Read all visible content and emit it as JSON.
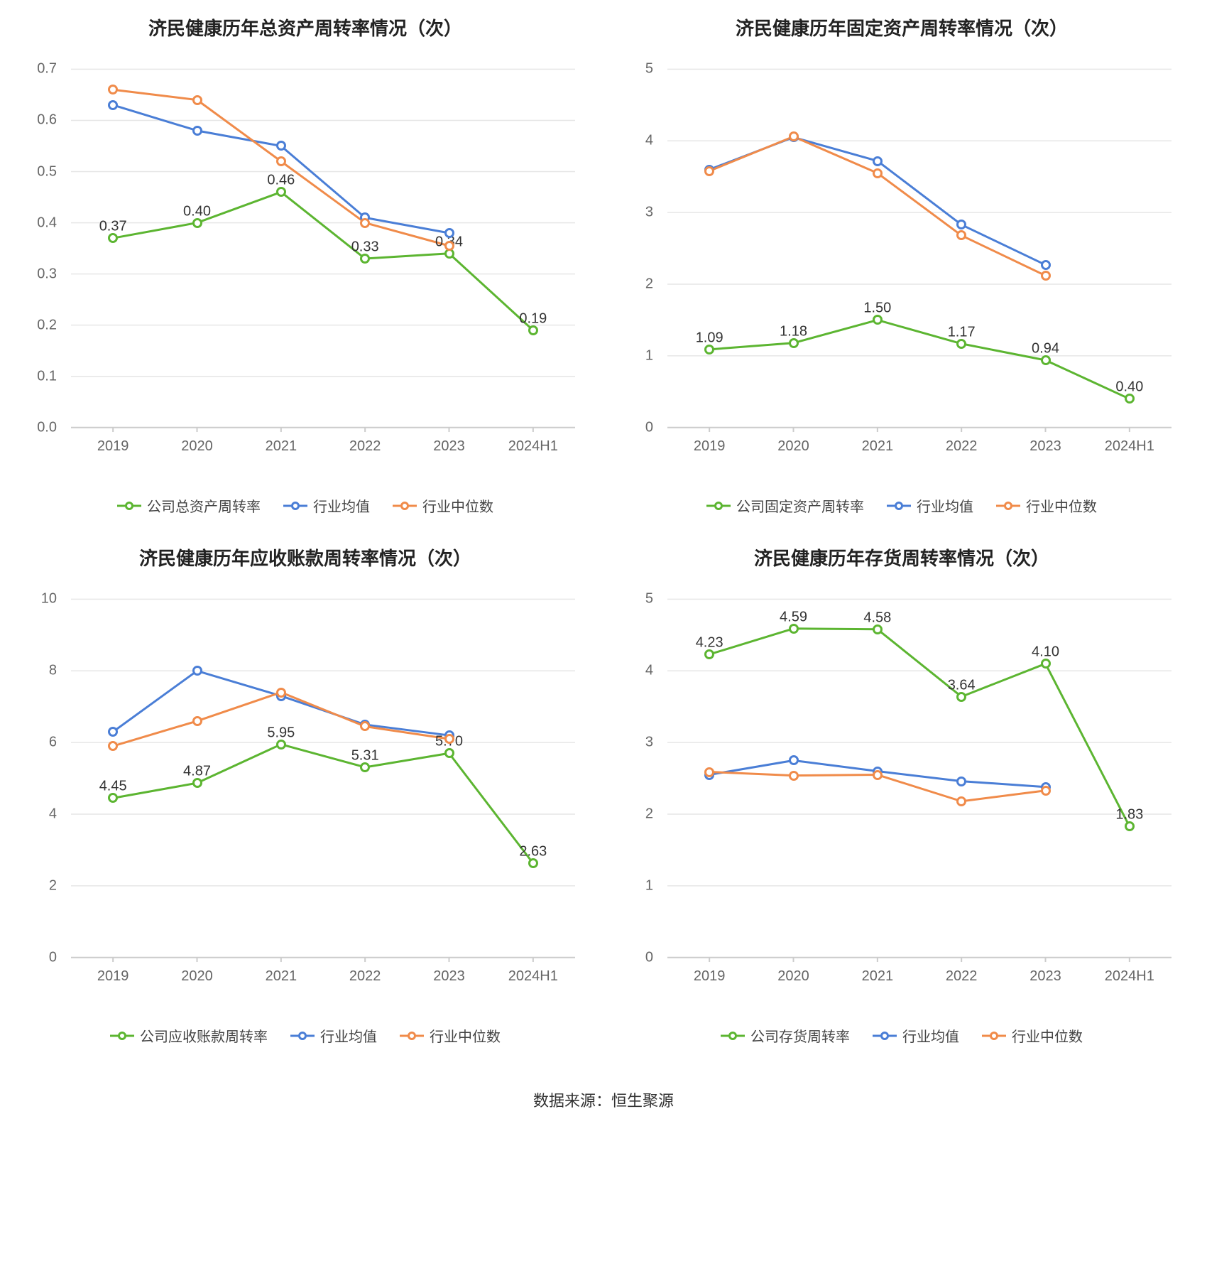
{
  "source_text": "数据来源：恒生聚源",
  "colors": {
    "company": "#5cb531",
    "avg": "#4a7ed6",
    "median": "#f08b4a",
    "grid": "#e6e6e6",
    "axis": "#cccccc",
    "text": "#666666",
    "label": "#333333",
    "bg": "#ffffff"
  },
  "style": {
    "line_width": 3,
    "marker_radius": 7,
    "marker_stroke": 3
  },
  "charts": [
    {
      "id": "c1",
      "title": "济民健康历年总资产周转率情况（次）",
      "categories": [
        "2019",
        "2020",
        "2021",
        "2022",
        "2023",
        "2024H1"
      ],
      "ylim": [
        0,
        0.7
      ],
      "ytick_step": 0.1,
      "y_decimals": 1,
      "series": [
        {
          "key": "company",
          "name": "公司总资产周转率",
          "show_labels": true,
          "label_decimals": 2,
          "values": [
            0.37,
            0.4,
            0.46,
            0.33,
            0.34,
            0.19
          ]
        },
        {
          "key": "avg",
          "name": "行业均值",
          "show_labels": false,
          "values": [
            0.63,
            0.58,
            0.55,
            0.41,
            0.38,
            null
          ]
        },
        {
          "key": "median",
          "name": "行业中位数",
          "show_labels": false,
          "values": [
            0.66,
            0.64,
            0.52,
            0.4,
            0.355,
            null
          ]
        }
      ]
    },
    {
      "id": "c2",
      "title": "济民健康历年固定资产周转率情况（次）",
      "categories": [
        "2019",
        "2020",
        "2021",
        "2022",
        "2023",
        "2024H1"
      ],
      "ylim": [
        0,
        5
      ],
      "ytick_step": 1,
      "y_decimals": 0,
      "series": [
        {
          "key": "company",
          "name": "公司固定资产周转率",
          "show_labels": true,
          "label_decimals": 2,
          "values": [
            1.09,
            1.18,
            1.5,
            1.17,
            0.94,
            0.4
          ]
        },
        {
          "key": "avg",
          "name": "行业均值",
          "show_labels": false,
          "values": [
            3.6,
            4.05,
            3.72,
            2.83,
            2.27,
            null
          ]
        },
        {
          "key": "median",
          "name": "行业中位数",
          "show_labels": false,
          "values": [
            3.58,
            4.06,
            3.55,
            2.68,
            2.12,
            null
          ]
        }
      ]
    },
    {
      "id": "c3",
      "title": "济民健康历年应收账款周转率情况（次）",
      "categories": [
        "2019",
        "2020",
        "2021",
        "2022",
        "2023",
        "2024H1"
      ],
      "ylim": [
        0,
        10
      ],
      "ytick_step": 2,
      "y_decimals": 0,
      "series": [
        {
          "key": "company",
          "name": "公司应收账款周转率",
          "show_labels": true,
          "label_decimals": 2,
          "values": [
            4.45,
            4.87,
            5.95,
            5.31,
            5.7,
            2.63
          ]
        },
        {
          "key": "avg",
          "name": "行业均值",
          "show_labels": false,
          "values": [
            6.3,
            8.0,
            7.3,
            6.5,
            6.2,
            null
          ]
        },
        {
          "key": "median",
          "name": "行业中位数",
          "show_labels": false,
          "values": [
            5.9,
            6.6,
            7.4,
            6.45,
            6.1,
            null
          ]
        }
      ]
    },
    {
      "id": "c4",
      "title": "济民健康历年存货周转率情况（次）",
      "categories": [
        "2019",
        "2020",
        "2021",
        "2022",
        "2023",
        "2024H1"
      ],
      "ylim": [
        0,
        5
      ],
      "ytick_step": 1,
      "y_decimals": 0,
      "series": [
        {
          "key": "company",
          "name": "公司存货周转率",
          "show_labels": true,
          "label_decimals": 2,
          "values": [
            4.23,
            4.59,
            4.58,
            3.64,
            4.1,
            1.83
          ]
        },
        {
          "key": "avg",
          "name": "行业均值",
          "show_labels": false,
          "values": [
            2.55,
            2.75,
            2.6,
            2.46,
            2.38,
            null
          ]
        },
        {
          "key": "median",
          "name": "行业中位数",
          "show_labels": false,
          "values": [
            2.59,
            2.54,
            2.55,
            2.18,
            2.33,
            null
          ]
        }
      ]
    }
  ]
}
